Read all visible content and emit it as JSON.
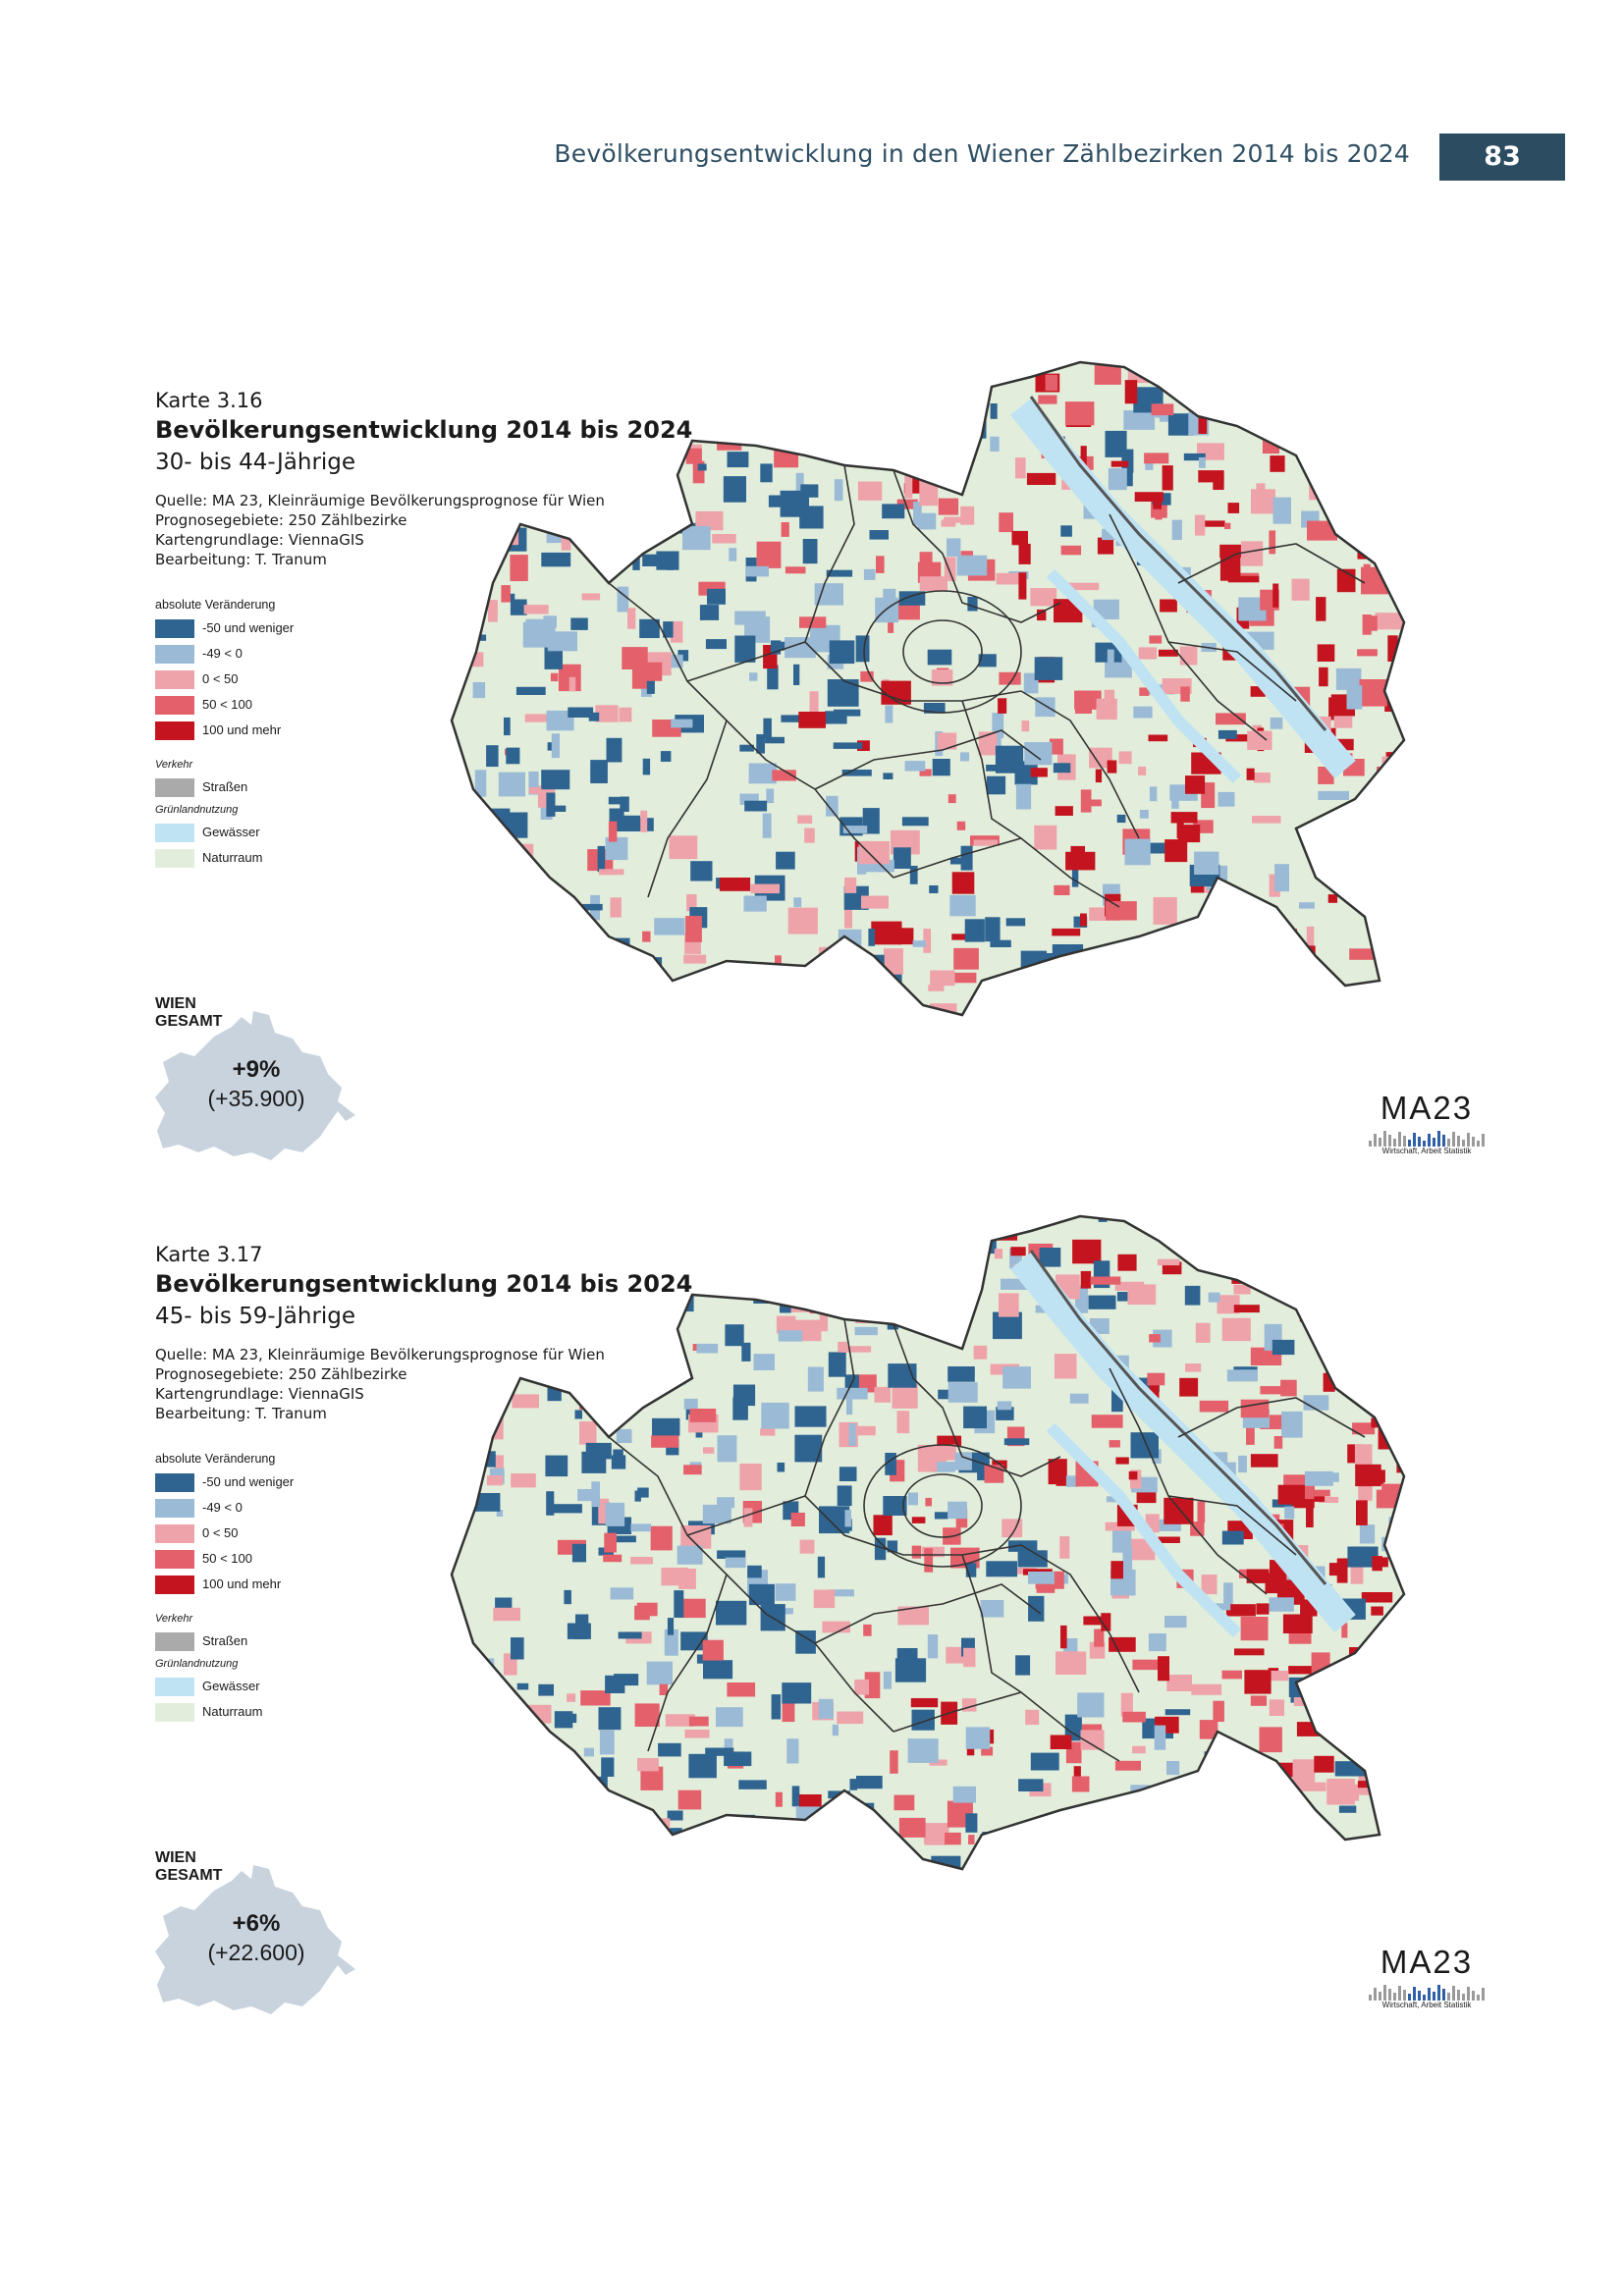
{
  "header": {
    "running_title": "Bevölkerungsentwicklung in den Wiener Zählbezirken 2014 bis 2024",
    "page_number": "83"
  },
  "legend_common": {
    "heading": "absolute Veränderung",
    "classes": [
      {
        "label": "-50 und weniger",
        "color": "#2f6491"
      },
      {
        "label": "-49 < 0",
        "color": "#9bbad6"
      },
      {
        "label": "0 < 50",
        "color": "#eea3aa"
      },
      {
        "label": "50 < 100",
        "color": "#e4606b"
      },
      {
        "label": "100 und mehr",
        "color": "#c4141f"
      }
    ],
    "group_verkehr": "Verkehr",
    "strassen": {
      "label": "Straßen",
      "color": "#aaaaaa"
    },
    "group_gruen": "Grünlandnutzung",
    "gewaesser": {
      "label": "Gewässer",
      "color": "#bfe3f3"
    },
    "naturraum": {
      "label": "Naturraum",
      "color": "#e2eedb"
    }
  },
  "maps": [
    {
      "karte": "Karte 3.16",
      "title": "Bevölkerungsentwicklung 2014 bis 2024",
      "subtitle": "30- bis 44-Jährige",
      "sources": [
        "Quelle: MA 23, Kleinräumige Bevölkerungsprognose für Wien",
        "Prognosegebiete: 250 Zählbezirke",
        "Kartengrundlage: ViennaGIS",
        "Bearbeitung: T. Tranum"
      ],
      "wien_label_line1": "WIEN",
      "wien_label_line2": "GESAMT",
      "wien_pct": "+9%",
      "wien_abs": "(+35.900)"
    },
    {
      "karte": "Karte 3.17",
      "title": "Bevölkerungsentwicklung 2014 bis 2024",
      "subtitle": "45- bis 59-Jährige",
      "sources": [
        "Quelle: MA 23, Kleinräumige Bevölkerungsprognose für Wien",
        "Prognosegebiete: 250 Zählbezirke",
        "Kartengrundlage: ViennaGIS",
        "Bearbeitung: T. Tranum"
      ],
      "wien_label_line1": "WIEN",
      "wien_label_line2": "GESAMT",
      "wien_pct": "+6%",
      "wien_abs": "(+22.600)"
    }
  ],
  "logo": {
    "text": "MA23",
    "caption": "Wirtschaft, Arbeit  Statistik"
  }
}
